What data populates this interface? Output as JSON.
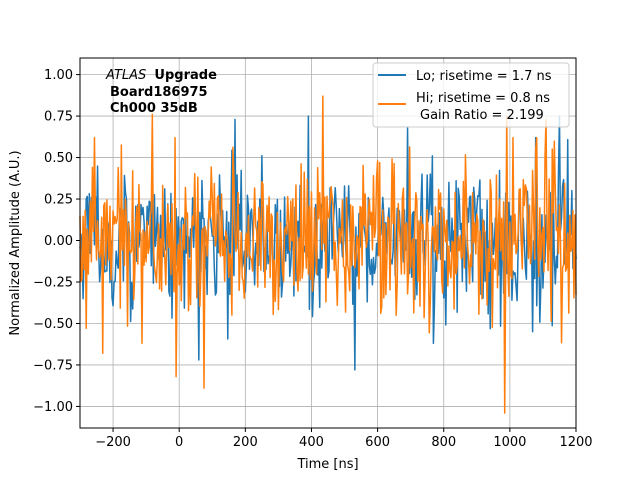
{
  "chart_data": {
    "type": "line",
    "xlabel": "Time [ns]",
    "ylabel": "Normalized Amplitude (A.U.)",
    "xlim": [
      -300,
      1200
    ],
    "ylim": [
      -1.13,
      1.1
    ],
    "x_ticks": [
      -200,
      0,
      200,
      400,
      600,
      800,
      1000,
      1200
    ],
    "x_tick_labels": [
      "−200",
      "0",
      "200",
      "400",
      "600",
      "800",
      "1000",
      "1200"
    ],
    "y_ticks": [
      -1.0,
      -0.75,
      -0.5,
      -0.25,
      0.0,
      0.25,
      0.5,
      0.75,
      1.0
    ],
    "y_tick_labels": [
      "−1.00",
      "−0.75",
      "−0.50",
      "−0.25",
      "0.00",
      "0.25",
      "0.50",
      "0.75",
      "1.00"
    ],
    "grid": true,
    "legend_position": "top-right",
    "annotation": {
      "experiment": "ATLAS",
      "tag": "Upgrade",
      "line2": "Board186975",
      "line3": "Ch000 35dB"
    },
    "series": [
      {
        "name": "Lo; risetime = 1.7 ns",
        "color": "#1f77b4",
        "x_start": -300,
        "x_step": 3.125,
        "noise_amplitude": 0.3,
        "notable_peaks": [
          {
            "x": 170,
            "y": 0.73
          },
          {
            "x": 390,
            "y": 0.75
          },
          {
            "x": 1150,
            "y": 0.75
          },
          {
            "x": 690,
            "y": 0.68
          }
        ],
        "notable_troughs": [
          {
            "x": 60,
            "y": -0.72
          },
          {
            "x": 530,
            "y": -0.78
          },
          {
            "x": 1070,
            "y": -0.55
          }
        ]
      },
      {
        "name": "Hi; risetime = 0.8 ns",
        "color": "#ff7f0e",
        "x_start": -300,
        "x_step": 3.125,
        "noise_amplitude": 0.33,
        "notable_peaks": [
          {
            "x": 433,
            "y": 0.87
          },
          {
            "x": -80,
            "y": 0.76
          },
          {
            "x": 990,
            "y": 0.75
          },
          {
            "x": 1110,
            "y": 0.73
          }
        ],
        "notable_troughs": [
          {
            "x": 985,
            "y": -1.04
          },
          {
            "x": 75,
            "y": -0.89
          },
          {
            "x": -10,
            "y": -0.82
          },
          {
            "x": -230,
            "y": -0.68
          }
        ]
      }
    ],
    "gain_ratio_label": "Gain Ratio = 2.199"
  }
}
